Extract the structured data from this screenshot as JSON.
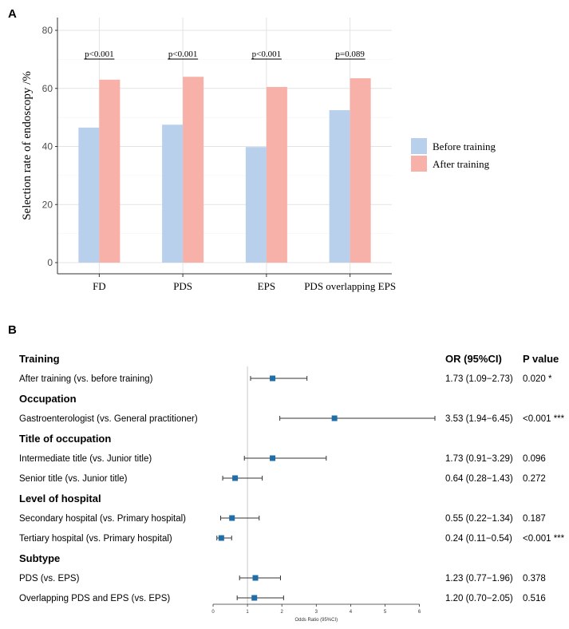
{
  "panel_a": {
    "label": "A",
    "chart_data": {
      "type": "bar",
      "title": "",
      "xlabel": "",
      "ylabel": "Selection rate of endoscopy /%",
      "ylim": [
        0,
        80
      ],
      "yticks": [
        0,
        20,
        40,
        60,
        80
      ],
      "categories": [
        "FD",
        "PDS",
        "EPS",
        "PDS  overlapping EPS"
      ],
      "series": [
        {
          "name": "Before training",
          "values": [
            46.5,
            47.5,
            39.8,
            52.5
          ],
          "color": "#b8d0ec"
        },
        {
          "name": "After training",
          "values": [
            63,
            64,
            60.5,
            63.5
          ],
          "color": "#f7b1a8"
        }
      ],
      "annotations": [
        "p<0.001",
        "p<0.001",
        "p<0.001",
        "p=0.089"
      ],
      "legend": "right"
    }
  },
  "panel_b": {
    "label": "B",
    "header_or": "OR (95%CI)",
    "header_p": "P value",
    "chart_data": {
      "type": "forest",
      "xlabel": "Odds Ratio (95%CI)",
      "xlim": [
        0,
        6
      ],
      "xticks": [
        0,
        1,
        2,
        3,
        4,
        5,
        6
      ],
      "reference": 1,
      "point_color": "#1f6ea8",
      "rows": [
        {
          "kind": "header",
          "label": "Training"
        },
        {
          "kind": "item",
          "label": "After training (vs. before training)",
          "or": 1.73,
          "lo": 1.09,
          "hi": 2.73,
          "or_text": "1.73 (1.09−2.73)",
          "p_text": "0.020 *"
        },
        {
          "kind": "header",
          "label": "Occupation"
        },
        {
          "kind": "item",
          "label": "Gastroenterologist (vs. General practitioner)",
          "or": 3.53,
          "lo": 1.94,
          "hi": 6.45,
          "or_text": "3.53 (1.94−6.45)",
          "p_text": "<0.001 ***"
        },
        {
          "kind": "header",
          "label": "Title of occupation"
        },
        {
          "kind": "item",
          "label": "Intermediate title (vs. Junior title)",
          "or": 1.73,
          "lo": 0.91,
          "hi": 3.29,
          "or_text": "1.73 (0.91−3.29)",
          "p_text": "0.096"
        },
        {
          "kind": "item",
          "label": "Senior title (vs. Junior title)",
          "or": 0.64,
          "lo": 0.28,
          "hi": 1.43,
          "or_text": "0.64 (0.28−1.43)",
          "p_text": "0.272"
        },
        {
          "kind": "header",
          "label": "Level of hospital"
        },
        {
          "kind": "item",
          "label": "Secondary hospital (vs. Primary hospital)",
          "or": 0.55,
          "lo": 0.22,
          "hi": 1.34,
          "or_text": "0.55 (0.22−1.34)",
          "p_text": "0.187"
        },
        {
          "kind": "item",
          "label": "Tertiary hospital (vs. Primary hospital)",
          "or": 0.24,
          "lo": 0.11,
          "hi": 0.54,
          "or_text": "0.24 (0.11−0.54)",
          "p_text": "<0.001 ***"
        },
        {
          "kind": "header",
          "label": "Subtype"
        },
        {
          "kind": "item",
          "label": "PDS (vs. EPS)",
          "or": 1.23,
          "lo": 0.77,
          "hi": 1.96,
          "or_text": "1.23 (0.77−1.96)",
          "p_text": "0.378"
        },
        {
          "kind": "item",
          "label": "Overlapping PDS and EPS  (vs. EPS)",
          "or": 1.2,
          "lo": 0.7,
          "hi": 2.05,
          "or_text": "1.20 (0.70−2.05)",
          "p_text": "0.516"
        }
      ]
    }
  }
}
